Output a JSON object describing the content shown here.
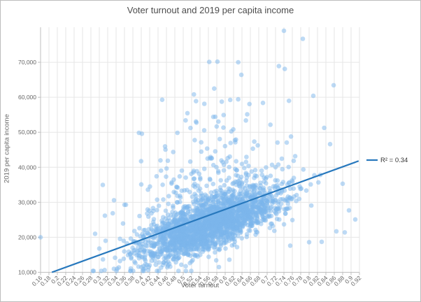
{
  "window": {
    "background": "#ffffff",
    "border_color": "#bdbdbd"
  },
  "chart_data": {
    "type": "scatter",
    "title": "Voter turnout and 2019 per capita income",
    "xlabel": "Voter turnout",
    "ylabel": "2019 per capita income",
    "xlim": [
      0.16,
      0.92
    ],
    "ylim": [
      10000,
      80000
    ],
    "grid": true,
    "x_tick_labels": [
      "0.16",
      "0.18",
      "0.2",
      "0.22",
      "0.24",
      "0.26",
      "0.28",
      "0.3",
      "0.32",
      "0.34",
      "0.36",
      "0.38",
      "0.4",
      "0.42",
      "0.44",
      "0.46",
      "0.48",
      "0.5",
      "0.52",
      "0.54",
      "0.56",
      "0.58",
      "0.6",
      "0.62",
      "0.64",
      "0.66",
      "0.68",
      "0.7",
      "0.72",
      "0.74",
      "0.76",
      "0.78",
      "0.8",
      "0.82",
      "0.84",
      "0.86",
      "0.88",
      "0.9",
      "0.92"
    ],
    "y_tick_labels": [
      "10,000",
      "20,000",
      "30,000",
      "40,000",
      "50,000",
      "60,000",
      "70,000"
    ],
    "colors": {
      "point": "#7cb5ec",
      "point_opacity": 0.5,
      "trend_line": "#2778bd",
      "grid_line": "#e6e6e6",
      "axis_line": "#bfbfbf",
      "title_text": "#4d4d4d",
      "tick_text": "#666666"
    },
    "legend": {
      "label": "R² = 0.34",
      "position": "right-of-trend-line-end"
    },
    "series": [
      {
        "name": "scatter-points",
        "type": "scatter",
        "marker_radius": 3.3,
        "cloud_distribution": {
          "comment": "dense cloud of ~2400 county points; income regressed on turnout with right-skewed noise",
          "count": 2400,
          "seed": 11,
          "turnout_mean": 0.565,
          "turnout_sd": 0.085,
          "turnout_min": 0.27,
          "turnout_max": 0.92,
          "income_intercept": 1600,
          "income_slope": 43800,
          "noise_mean": -2800,
          "noise_sd": 3600,
          "skew_prob": 0.18,
          "skew_mean": 8500,
          "income_min": 10400,
          "income_max": 72000
        },
        "notable_points": [
          [
            0.16,
            20000
          ],
          [
            0.74,
            79000
          ],
          [
            0.785,
            76700
          ],
          [
            0.562,
            70100
          ],
          [
            0.631,
            70000
          ],
          [
            0.728,
            68900
          ],
          [
            0.742,
            68100
          ],
          [
            0.631,
            59400
          ],
          [
            0.81,
            60400
          ],
          [
            0.69,
            58400
          ],
          [
            0.752,
            59000
          ],
          [
            0.91,
            25100
          ],
          [
            0.885,
            21400
          ],
          [
            0.755,
            17600
          ],
          [
            0.8,
            18600
          ],
          [
            0.335,
            30600
          ],
          [
            0.4,
            35100
          ],
          [
            0.29,
            21000
          ],
          [
            0.3,
            16800
          ],
          [
            0.315,
            19000
          ],
          [
            0.375,
            11100
          ],
          [
            0.41,
            12300
          ],
          [
            0.52,
            13100
          ],
          [
            0.585,
            11500
          ],
          [
            0.61,
            13600
          ],
          [
            0.85,
            46600
          ],
          [
            0.88,
            35300
          ],
          [
            0.895,
            27700
          ],
          [
            0.865,
            21700
          ],
          [
            0.83,
            18700
          ]
        ]
      },
      {
        "name": "trend-line",
        "type": "line",
        "r_squared": 0.34,
        "x1": 0.187,
        "y1": 9800,
        "x2": 0.918,
        "y2": 41800,
        "width": 2.2
      }
    ]
  }
}
